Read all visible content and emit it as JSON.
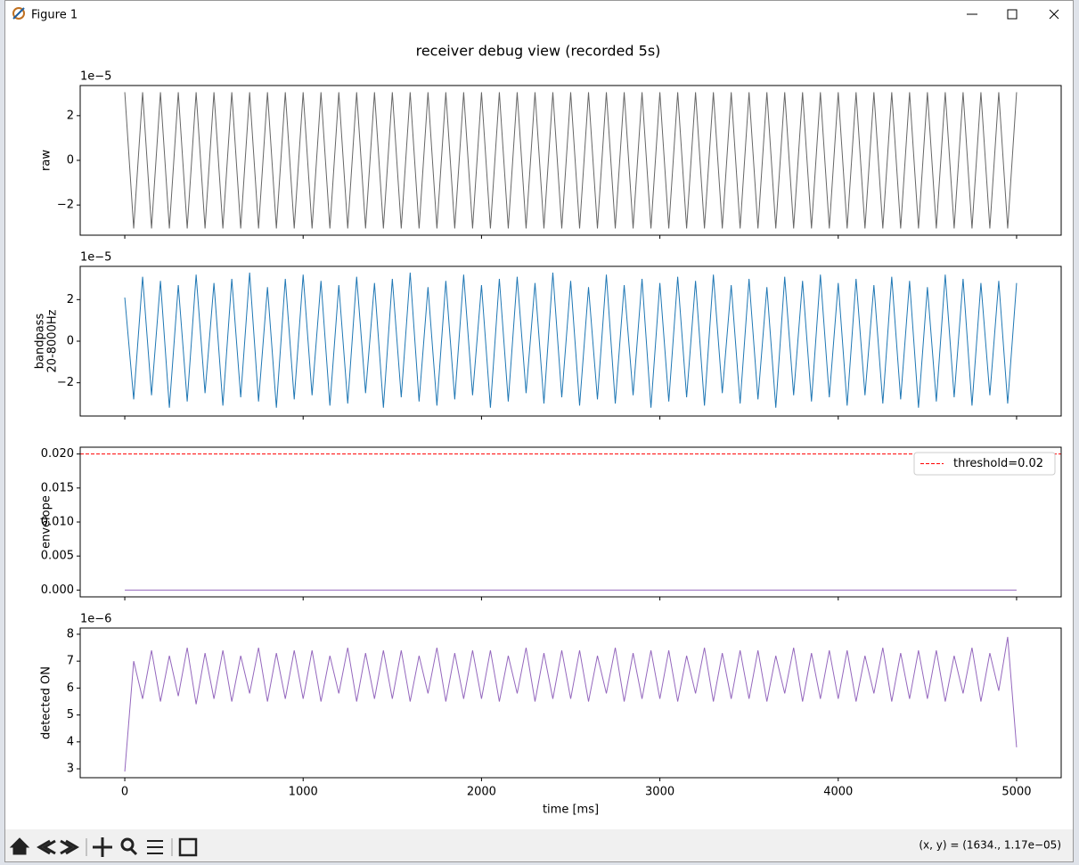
{
  "window": {
    "title": "Figure 1",
    "status": "(x, y) = (1634., 1.17e−05)"
  },
  "figure": {
    "title": "receiver debug view (recorded 5s)"
  },
  "chart_data": [
    {
      "type": "line",
      "ylabel": "raw",
      "offset_label": "1e−5",
      "xlim": [
        -250,
        5250
      ],
      "xticks": [
        0,
        1000,
        2000,
        3000,
        4000,
        5000
      ],
      "show_xticklabels": false,
      "ylim": [
        -3.35,
        3.35
      ],
      "yticks": [
        {
          "value": -2,
          "label": "−2"
        },
        0,
        2
      ],
      "x": [
        0,
        50,
        100,
        150,
        200,
        250,
        300,
        350,
        400,
        450,
        500,
        550,
        600,
        650,
        700,
        750,
        800,
        850,
        900,
        950,
        1000,
        1050,
        1100,
        1150,
        1200,
        1250,
        1300,
        1350,
        1400,
        1450,
        1500,
        1550,
        1600,
        1650,
        1700,
        1750,
        1800,
        1850,
        1900,
        1950,
        2000,
        2050,
        2100,
        2150,
        2200,
        2250,
        2300,
        2350,
        2400,
        2450,
        2500,
        2550,
        2600,
        2650,
        2700,
        2750,
        2800,
        2850,
        2900,
        2950,
        3000,
        3050,
        3100,
        3150,
        3200,
        3250,
        3300,
        3350,
        3400,
        3450,
        3500,
        3550,
        3600,
        3650,
        3700,
        3750,
        3800,
        3850,
        3900,
        3950,
        4000,
        4050,
        4100,
        4150,
        4200,
        4250,
        4300,
        4350,
        4400,
        4450,
        4500,
        4550,
        4600,
        4650,
        4700,
        4750,
        4800,
        4850,
        4900,
        4950,
        5000
      ],
      "series": [
        {
          "color": "#666666",
          "values": [
            3.05,
            -3.05,
            3.05,
            -3.05,
            3.05,
            -3.05,
            3.05,
            -3.05,
            3.05,
            -3.05,
            3.05,
            -3.05,
            3.05,
            -3.05,
            3.05,
            -3.05,
            3.05,
            -3.05,
            3.05,
            -3.05,
            3.05,
            -3.05,
            3.05,
            -3.05,
            3.05,
            -3.05,
            3.05,
            -3.05,
            3.05,
            -3.05,
            3.05,
            -3.05,
            3.05,
            -3.05,
            3.05,
            -3.05,
            3.05,
            -3.05,
            3.05,
            -3.05,
            3.05,
            -3.05,
            3.05,
            -3.05,
            3.05,
            -3.05,
            3.05,
            -3.05,
            3.05,
            -3.05,
            3.05,
            -3.05,
            3.05,
            -3.05,
            3.05,
            -3.05,
            3.05,
            -3.05,
            3.05,
            -3.05,
            3.05,
            -3.05,
            3.05,
            -3.05,
            3.05,
            -3.05,
            3.05,
            -3.05,
            3.05,
            -3.05,
            3.05,
            -3.05,
            3.05,
            -3.05,
            3.05,
            -3.05,
            3.05,
            -3.05,
            3.05,
            -3.05,
            3.05,
            -3.05,
            3.05,
            -3.05,
            3.05,
            -3.05,
            3.05,
            -3.05,
            3.05,
            -3.05,
            3.05,
            -3.05,
            3.05,
            -3.05,
            3.05,
            -3.05,
            3.05,
            -3.05,
            3.05,
            -3.05,
            3.05
          ]
        }
      ]
    },
    {
      "type": "line",
      "ylabel": [
        "bandpass",
        "20-8000Hz"
      ],
      "offset_label": "1e−5",
      "xlim": [
        -250,
        5250
      ],
      "xticks": [
        0,
        1000,
        2000,
        3000,
        4000,
        5000
      ],
      "show_xticklabels": false,
      "ylim": [
        -3.6,
        3.6
      ],
      "yticks": [
        {
          "value": -2,
          "label": "−2"
        },
        0,
        2
      ],
      "x": [
        0,
        50,
        100,
        150,
        200,
        250,
        300,
        350,
        400,
        450,
        500,
        550,
        600,
        650,
        700,
        750,
        800,
        850,
        900,
        950,
        1000,
        1050,
        1100,
        1150,
        1200,
        1250,
        1300,
        1350,
        1400,
        1450,
        1500,
        1550,
        1600,
        1650,
        1700,
        1750,
        1800,
        1850,
        1900,
        1950,
        2000,
        2050,
        2100,
        2150,
        2200,
        2250,
        2300,
        2350,
        2400,
        2450,
        2500,
        2550,
        2600,
        2650,
        2700,
        2750,
        2800,
        2850,
        2900,
        2950,
        3000,
        3050,
        3100,
        3150,
        3200,
        3250,
        3300,
        3350,
        3400,
        3450,
        3500,
        3550,
        3600,
        3650,
        3700,
        3750,
        3800,
        3850,
        3900,
        3950,
        4000,
        4050,
        4100,
        4150,
        4200,
        4250,
        4300,
        4350,
        4400,
        4450,
        4500,
        4550,
        4600,
        4650,
        4700,
        4750,
        4800,
        4850,
        4900,
        4950,
        5000
      ],
      "series": [
        {
          "color": "#1f77b4",
          "values": [
            2.1,
            -2.8,
            3.1,
            -2.6,
            2.9,
            -3.2,
            2.7,
            -2.9,
            3.2,
            -2.5,
            2.8,
            -3.1,
            3.0,
            -2.7,
            3.3,
            -2.9,
            2.6,
            -3.2,
            3.0,
            -2.8,
            3.2,
            -2.6,
            2.9,
            -3.1,
            2.7,
            -3.0,
            3.1,
            -2.5,
            2.8,
            -3.2,
            3.0,
            -2.7,
            3.3,
            -2.9,
            2.6,
            -3.1,
            2.9,
            -2.8,
            3.2,
            -2.6,
            2.7,
            -3.2,
            3.0,
            -2.9,
            3.1,
            -2.5,
            2.8,
            -3.0,
            3.3,
            -2.7,
            2.9,
            -3.1,
            2.6,
            -2.8,
            3.2,
            -3.0,
            2.7,
            -2.6,
            3.0,
            -3.2,
            2.8,
            -2.9,
            3.1,
            -2.7,
            2.9,
            -3.1,
            3.2,
            -2.5,
            2.7,
            -3.0,
            3.0,
            -2.8,
            2.6,
            -3.2,
            3.1,
            -2.6,
            2.9,
            -2.9,
            3.2,
            -2.7,
            2.8,
            -3.1,
            3.0,
            -2.6,
            2.7,
            -3.0,
            3.1,
            -2.8,
            2.9,
            -3.2,
            2.6,
            -2.9,
            3.2,
            -2.7,
            3.0,
            -3.1,
            2.8,
            -2.6,
            2.9,
            -3.0,
            2.8
          ]
        }
      ]
    },
    {
      "type": "line",
      "ylabel": "envelope",
      "xlim": [
        -250,
        5250
      ],
      "xticks": [
        0,
        1000,
        2000,
        3000,
        4000,
        5000
      ],
      "show_xticklabels": false,
      "ylim": [
        -0.001,
        0.021
      ],
      "yticks": [
        {
          "value": 0,
          "label": "0.000"
        },
        {
          "value": 0.005,
          "label": "0.005"
        },
        {
          "value": 0.01,
          "label": "0.010"
        },
        {
          "value": 0.015,
          "label": "0.015"
        },
        {
          "value": 0.02,
          "label": "0.020"
        }
      ],
      "x": [
        0,
        5000
      ],
      "series": [
        {
          "color": "#9467bd",
          "values": [
            0,
            0
          ]
        }
      ],
      "hlines": [
        {
          "name": "threshold=0.02",
          "value": 0.02,
          "color": "#ff0000",
          "dashed": true
        }
      ],
      "legend": "upper right"
    },
    {
      "type": "line",
      "ylabel": "detected ON",
      "offset_label": "1e−6",
      "xlabel": "time [ms]",
      "xlim": [
        -250,
        5250
      ],
      "xticks": [
        0,
        1000,
        2000,
        3000,
        4000,
        5000
      ],
      "show_xticklabels": true,
      "ylim": [
        2.67,
        8.23
      ],
      "yticks": [
        3,
        4,
        5,
        6,
        7,
        8
      ],
      "x": [
        0,
        50,
        100,
        150,
        200,
        250,
        300,
        350,
        400,
        450,
        500,
        550,
        600,
        650,
        700,
        750,
        800,
        850,
        900,
        950,
        1000,
        1050,
        1100,
        1150,
        1200,
        1250,
        1300,
        1350,
        1400,
        1450,
        1500,
        1550,
        1600,
        1650,
        1700,
        1750,
        1800,
        1850,
        1900,
        1950,
        2000,
        2050,
        2100,
        2150,
        2200,
        2250,
        2300,
        2350,
        2400,
        2450,
        2500,
        2550,
        2600,
        2650,
        2700,
        2750,
        2800,
        2850,
        2900,
        2950,
        3000,
        3050,
        3100,
        3150,
        3200,
        3250,
        3300,
        3350,
        3400,
        3450,
        3500,
        3550,
        3600,
        3650,
        3700,
        3750,
        3800,
        3850,
        3900,
        3950,
        4000,
        4050,
        4100,
        4150,
        4200,
        4250,
        4300,
        4350,
        4400,
        4450,
        4500,
        4550,
        4600,
        4650,
        4700,
        4750,
        4800,
        4850,
        4900,
        4950,
        5000
      ],
      "series": [
        {
          "color": "#9467bd",
          "values": [
            2.9,
            7.0,
            5.6,
            7.4,
            5.5,
            7.2,
            5.7,
            7.5,
            5.4,
            7.3,
            5.6,
            7.4,
            5.5,
            7.2,
            5.8,
            7.5,
            5.5,
            7.3,
            5.6,
            7.4,
            5.6,
            7.4,
            5.5,
            7.2,
            5.8,
            7.5,
            5.5,
            7.3,
            5.6,
            7.4,
            5.6,
            7.4,
            5.5,
            7.2,
            5.8,
            7.5,
            5.5,
            7.3,
            5.6,
            7.4,
            5.6,
            7.4,
            5.5,
            7.2,
            5.8,
            7.5,
            5.5,
            7.3,
            5.6,
            7.4,
            5.6,
            7.4,
            5.5,
            7.2,
            5.8,
            7.5,
            5.5,
            7.3,
            5.6,
            7.4,
            5.6,
            7.4,
            5.5,
            7.2,
            5.8,
            7.5,
            5.5,
            7.3,
            5.6,
            7.4,
            5.6,
            7.4,
            5.5,
            7.2,
            5.8,
            7.5,
            5.5,
            7.3,
            5.6,
            7.4,
            5.6,
            7.4,
            5.5,
            7.2,
            5.8,
            7.5,
            5.5,
            7.3,
            5.6,
            7.4,
            5.6,
            7.4,
            5.5,
            7.2,
            5.8,
            7.5,
            5.5,
            7.3,
            5.9,
            7.9,
            3.8
          ]
        }
      ]
    }
  ]
}
